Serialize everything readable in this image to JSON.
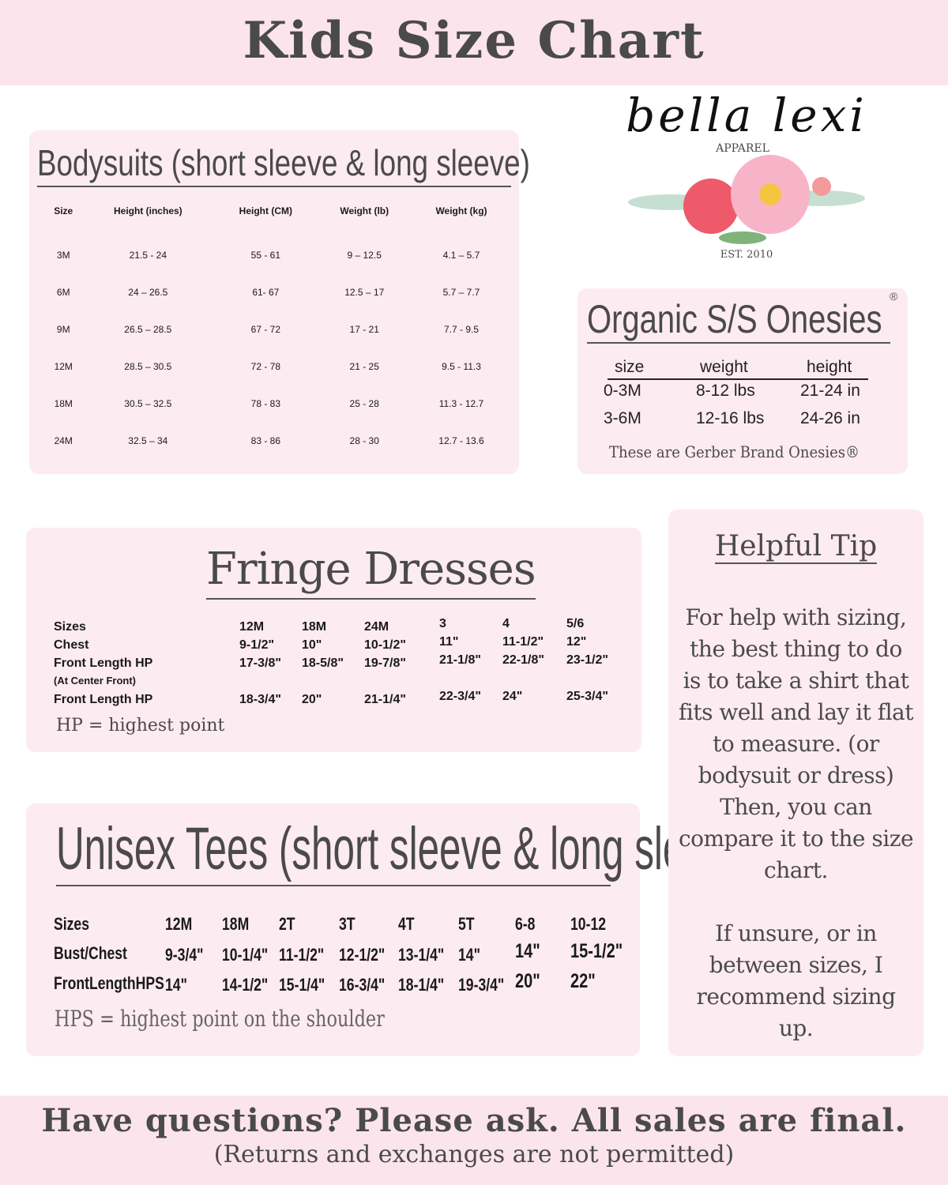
{
  "header": {
    "title": "Kids Size Chart"
  },
  "logo": {
    "name": "bella lexi",
    "sub": "APPAREL",
    "est": "EST. 2010"
  },
  "bodysuits": {
    "title": "Bodysuits (short sleeve & long sleeve)",
    "headers": [
      "Size",
      "Height (inches)",
      "Height (CM)",
      "Weight (lb)",
      "Weight (kg)"
    ],
    "rows": [
      [
        "3M",
        "21.5 - 24",
        "55 - 61",
        "9 – 12.5",
        "4.1 – 5.7"
      ],
      [
        "6M",
        "24 – 26.5",
        "61- 67",
        "12.5 – 17",
        "5.7 – 7.7"
      ],
      [
        "9M",
        "26.5 – 28.5",
        "67 - 72",
        "17 - 21",
        "7.7 - 9.5"
      ],
      [
        "12M",
        "28.5 – 30.5",
        "72 - 78",
        "21 - 25",
        "9.5 - 11.3"
      ],
      [
        "18M",
        "30.5 – 32.5",
        "78 - 83",
        "25 - 28",
        "11.3 - 12.7"
      ],
      [
        "24M",
        "32.5 – 34",
        "83 - 86",
        "28 - 30",
        "12.7 - 13.6"
      ]
    ]
  },
  "onesies": {
    "title": "Organic S/S Onesies",
    "reg": "®",
    "headers": [
      "size",
      "weight",
      "height"
    ],
    "rows": [
      [
        "0-3M",
        "8-12 lbs",
        "21-24 in"
      ],
      [
        "3-6M",
        "12-16 lbs",
        "24-26 in"
      ]
    ],
    "note": "These are Gerber Brand Onesies®"
  },
  "fringe": {
    "title": "Fringe Dresses",
    "labels": [
      "Sizes",
      "Chest",
      "Front Length HP",
      "(At Center Front)",
      "Front Length HP"
    ],
    "cols": [
      [
        "12M",
        "9-1/2\"",
        "17-3/8\"",
        "18-3/4\""
      ],
      [
        "18M",
        "10\"",
        "18-5/8\"",
        "20\""
      ],
      [
        "24M",
        "10-1/2\"",
        "19-7/8\"",
        "21-1/4\""
      ],
      [
        "3",
        "11\"",
        "21-1/8\"",
        "22-3/4\""
      ],
      [
        "4",
        "11-1/2\"",
        "22-1/8\"",
        "24\""
      ],
      [
        "5/6",
        "12\"",
        "23-1/2\"",
        "25-3/4\""
      ]
    ],
    "note": "HP = highest point"
  },
  "tees": {
    "title": "Unisex Tees (short sleeve & long sleeve)",
    "labels": [
      "Sizes",
      "Bust/Chest",
      "FrontLengthHPS"
    ],
    "cols": [
      [
        "12M",
        "9-3/4\"",
        "14\""
      ],
      [
        "18M",
        "10-1/4\"",
        "14-1/2\""
      ],
      [
        "2T",
        "11-1/2\"",
        "15-1/4\""
      ],
      [
        "3T",
        "12-1/2\"",
        "16-3/4\""
      ],
      [
        "4T",
        "13-1/4\"",
        "18-1/4\""
      ],
      [
        "5T",
        "14\"",
        "19-3/4\""
      ],
      [
        "6-8",
        "14\"",
        "20\""
      ],
      [
        "10-12",
        "15-1/2\"",
        "22\""
      ]
    ],
    "note": "HPS = highest point on the shoulder"
  },
  "tip": {
    "title": "Helpful Tip",
    "p1": "For help with sizing, the best thing to do is to take a shirt that fits well and lay it flat to measure. (or bodysuit or dress) Then, you can compare it to the size chart.",
    "p2": "If unsure, or in between sizes, I recommend sizing up."
  },
  "footer": {
    "line1": "Have questions? Please ask. All sales are final.",
    "line2": "(Returns and exchanges are not permitted)"
  },
  "colors": {
    "band": "#fbe4ec",
    "box": "#fcebf1",
    "text": "#4a4a4a"
  }
}
